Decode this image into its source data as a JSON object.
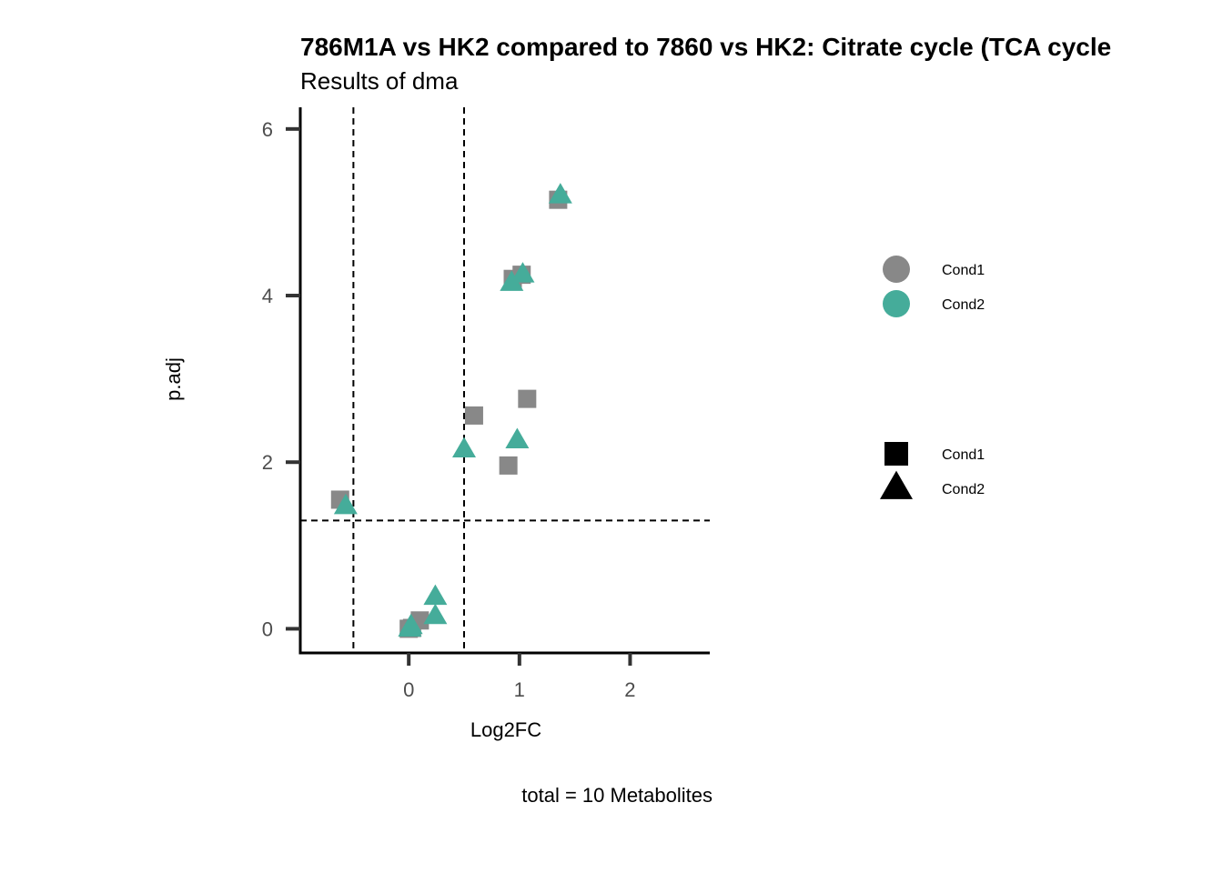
{
  "chart_data": {
    "type": "scatter",
    "title": "786M1A vs HK2 compared to 7860 vs HK2: Citrate cycle (TCA cycle",
    "subtitle": "Results of dma",
    "xlabel": "Log2FC",
    "ylabel": "p.adj",
    "caption": "total = 10 Metabolites",
    "xlim": [
      -0.98,
      2.72
    ],
    "ylim": [
      -0.29,
      6.26
    ],
    "x_ticks": [
      0,
      1,
      2
    ],
    "y_ticks": [
      0,
      2,
      4,
      6
    ],
    "x_tick_labels": [
      "0",
      "1",
      "2"
    ],
    "y_tick_labels": [
      "0",
      "2",
      "4",
      "6"
    ],
    "thresholds": {
      "x": [
        -0.5,
        0.5
      ],
      "y": 1.3
    },
    "colors": {
      "Cond1": "#888888",
      "Cond2": "#45ac9a"
    },
    "legends": {
      "color": {
        "entries": [
          "Cond1",
          "Cond2"
        ]
      },
      "shape": {
        "entries": [
          "Cond1",
          "Cond2"
        ],
        "shapes": [
          "square",
          "triangle"
        ]
      }
    },
    "series": [
      {
        "name": "Cond1",
        "shape": "square",
        "color": "#888888",
        "points": [
          {
            "x": 1.35,
            "y": 5.15
          },
          {
            "x": 0.94,
            "y": 4.2
          },
          {
            "x": 1.02,
            "y": 4.25
          },
          {
            "x": 1.07,
            "y": 2.76
          },
          {
            "x": 0.59,
            "y": 2.56
          },
          {
            "x": 0.9,
            "y": 1.96
          },
          {
            "x": -0.62,
            "y": 1.55
          },
          {
            "x": 0.1,
            "y": 0.1
          },
          {
            "x": 0.03,
            "y": 0.01
          },
          {
            "x": 0.0,
            "y": 0.0
          }
        ]
      },
      {
        "name": "Cond2",
        "shape": "triangle",
        "color": "#45ac9a",
        "points": [
          {
            "x": 1.37,
            "y": 5.2
          },
          {
            "x": 1.03,
            "y": 4.25
          },
          {
            "x": 0.93,
            "y": 4.15
          },
          {
            "x": 0.98,
            "y": 2.26
          },
          {
            "x": 0.5,
            "y": 2.15
          },
          {
            "x": -0.57,
            "y": 1.47
          },
          {
            "x": 0.24,
            "y": 0.38
          },
          {
            "x": 0.24,
            "y": 0.15
          },
          {
            "x": 0.02,
            "y": 0.03
          },
          {
            "x": 0.01,
            "y": 0.0
          }
        ]
      }
    ]
  }
}
